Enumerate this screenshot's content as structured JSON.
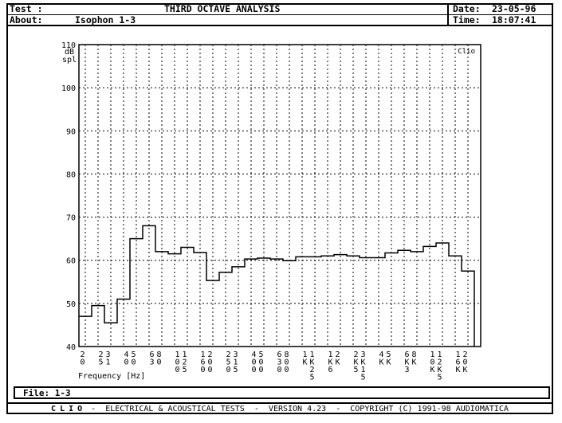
{
  "header": {
    "test_label": "Test :",
    "title": "THIRD OCTAVE ANALYSIS",
    "date_label": "Date:",
    "date_value": "23-05-96",
    "about_label": "About:",
    "about_value": "Isophon 1-3",
    "time_label": "Time:",
    "time_value": "18:07:41"
  },
  "chart_data": {
    "type": "bar",
    "style": "third-octave step histogram",
    "brand": "Clio",
    "ylabel": "dB spl",
    "xlabel": "Frequency [Hz]",
    "ylim": [
      40,
      110
    ],
    "yticks": [
      40,
      50,
      60,
      70,
      80,
      90,
      100,
      110
    ],
    "grid": true,
    "categories": [
      "20",
      "25",
      "31",
      "40",
      "50",
      "63",
      "80",
      "100",
      "125",
      "160",
      "200",
      "250",
      "315",
      "400",
      "500",
      "630",
      "800",
      "1K",
      "1K25",
      "1K6",
      "2K",
      "2K5",
      "3K15",
      "4K",
      "5K",
      "6K3",
      "8K",
      "10K",
      "12K5",
      "16K",
      "20K"
    ],
    "values": [
      47,
      49.5,
      45.5,
      51,
      65,
      68,
      62,
      61.5,
      63,
      61.8,
      55.3,
      57.2,
      58.5,
      60.3,
      60.5,
      60.3,
      59.9,
      60.8,
      60.8,
      61,
      61.3,
      61,
      60.6,
      60.6,
      61.7,
      62.3,
      62,
      63.2,
      64,
      61,
      57.5
    ]
  },
  "file": {
    "label": "File:",
    "value": "1-3"
  },
  "footer": {
    "brand": "CLIO",
    "text": " -  ELECTRICAL & ACOUSTICAL TESTS  -  VERSION 4.23  -  COPYRIGHT (C) 1991-98 AUDIOMATICA"
  }
}
